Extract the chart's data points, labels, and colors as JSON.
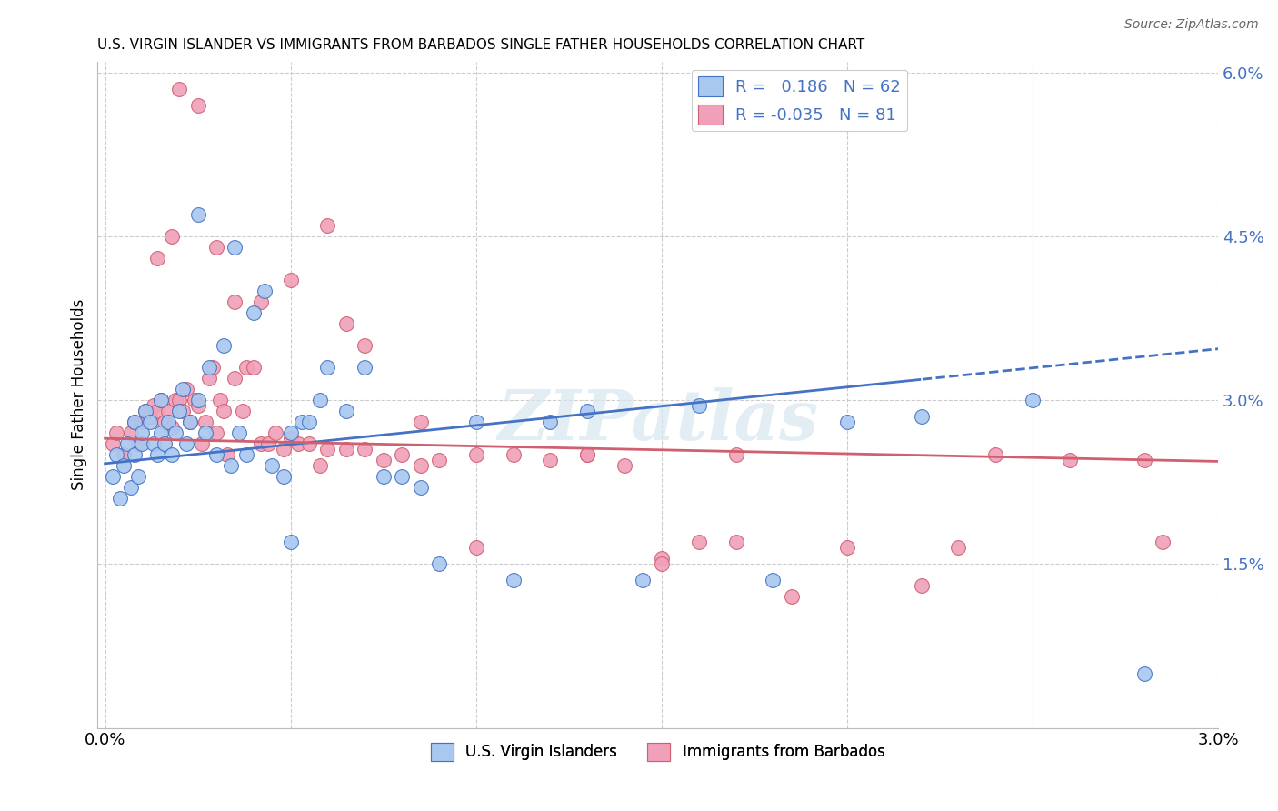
{
  "title": "U.S. VIRGIN ISLANDER VS IMMIGRANTS FROM BARBADOS SINGLE FATHER HOUSEHOLDS CORRELATION CHART",
  "source": "Source: ZipAtlas.com",
  "ylabel": "Single Father Households",
  "xlim": [
    0.0,
    3.0
  ],
  "ylim": [
    0.0,
    6.0
  ],
  "ytick_vals": [
    0.0,
    1.5,
    3.0,
    4.5,
    6.0
  ],
  "ytick_labels": [
    "",
    "1.5%",
    "3.0%",
    "4.5%",
    "6.0%"
  ],
  "xtick_vals": [
    0.0,
    0.5,
    1.0,
    1.5,
    2.0,
    2.5,
    3.0
  ],
  "xtick_labels": [
    "0.0%",
    "",
    "",
    "",
    "",
    "",
    "3.0%"
  ],
  "series1_color": "#a8c8f0",
  "series2_color": "#f0a0b8",
  "line1_color": "#4472c4",
  "line2_color": "#d06070",
  "R1": 0.186,
  "N1": 62,
  "R2": -0.035,
  "N2": 81,
  "watermark": "ZIPatlas",
  "blue_points_x": [
    0.02,
    0.03,
    0.04,
    0.05,
    0.06,
    0.07,
    0.08,
    0.08,
    0.09,
    0.1,
    0.1,
    0.11,
    0.12,
    0.13,
    0.14,
    0.15,
    0.15,
    0.16,
    0.17,
    0.18,
    0.19,
    0.2,
    0.21,
    0.22,
    0.23,
    0.25,
    0.27,
    0.28,
    0.3,
    0.32,
    0.34,
    0.36,
    0.38,
    0.4,
    0.43,
    0.45,
    0.48,
    0.5,
    0.53,
    0.55,
    0.58,
    0.6,
    0.65,
    0.7,
    0.75,
    0.8,
    0.85,
    0.9,
    1.0,
    1.1,
    1.2,
    1.3,
    1.45,
    1.6,
    1.8,
    2.0,
    2.2,
    2.5,
    0.25,
    0.35,
    0.5,
    2.8
  ],
  "blue_points_y": [
    2.3,
    2.5,
    2.1,
    2.4,
    2.6,
    2.2,
    2.5,
    2.8,
    2.3,
    2.6,
    2.7,
    2.9,
    2.8,
    2.6,
    2.5,
    2.7,
    3.0,
    2.6,
    2.8,
    2.5,
    2.7,
    2.9,
    3.1,
    2.6,
    2.8,
    3.0,
    2.7,
    3.3,
    2.5,
    3.5,
    2.4,
    2.7,
    2.5,
    3.8,
    4.0,
    2.4,
    2.3,
    2.7,
    2.8,
    2.8,
    3.0,
    3.3,
    2.9,
    3.3,
    2.3,
    2.3,
    2.2,
    1.5,
    2.8,
    1.35,
    2.8,
    2.9,
    1.35,
    2.95,
    1.35,
    2.8,
    2.85,
    3.0,
    4.7,
    4.4,
    1.7,
    0.5
  ],
  "pink_points_x": [
    0.02,
    0.03,
    0.05,
    0.07,
    0.08,
    0.09,
    0.1,
    0.11,
    0.12,
    0.13,
    0.14,
    0.15,
    0.16,
    0.17,
    0.18,
    0.19,
    0.2,
    0.21,
    0.22,
    0.23,
    0.24,
    0.25,
    0.26,
    0.27,
    0.28,
    0.29,
    0.3,
    0.31,
    0.32,
    0.33,
    0.35,
    0.37,
    0.38,
    0.4,
    0.42,
    0.44,
    0.46,
    0.48,
    0.5,
    0.52,
    0.55,
    0.58,
    0.6,
    0.65,
    0.7,
    0.75,
    0.8,
    0.85,
    0.9,
    1.0,
    1.1,
    1.2,
    1.3,
    1.4,
    1.5,
    1.6,
    1.7,
    1.85,
    2.0,
    2.2,
    2.4,
    2.6,
    2.8,
    0.14,
    0.18,
    0.2,
    0.25,
    0.3,
    0.35,
    0.42,
    0.5,
    0.6,
    0.65,
    0.7,
    0.85,
    1.0,
    1.3,
    1.5,
    1.7,
    2.3,
    2.85
  ],
  "pink_points_y": [
    2.6,
    2.7,
    2.5,
    2.7,
    2.8,
    2.6,
    2.8,
    2.9,
    2.85,
    2.95,
    2.9,
    3.0,
    2.8,
    2.9,
    2.75,
    3.0,
    3.0,
    2.9,
    3.1,
    2.8,
    3.0,
    2.95,
    2.6,
    2.8,
    3.2,
    3.3,
    2.7,
    3.0,
    2.9,
    2.5,
    3.2,
    2.9,
    3.3,
    3.3,
    2.6,
    2.6,
    2.7,
    2.55,
    2.65,
    2.6,
    2.6,
    2.4,
    2.55,
    2.55,
    2.55,
    2.45,
    2.5,
    2.4,
    2.45,
    2.5,
    2.5,
    2.45,
    2.5,
    2.4,
    1.55,
    1.7,
    1.7,
    1.2,
    1.65,
    1.3,
    2.5,
    2.45,
    2.45,
    4.3,
    4.5,
    5.85,
    5.7,
    4.4,
    3.9,
    3.9,
    4.1,
    4.6,
    3.7,
    3.5,
    2.8,
    1.65,
    2.5,
    1.5,
    2.5,
    1.65,
    1.7
  ]
}
